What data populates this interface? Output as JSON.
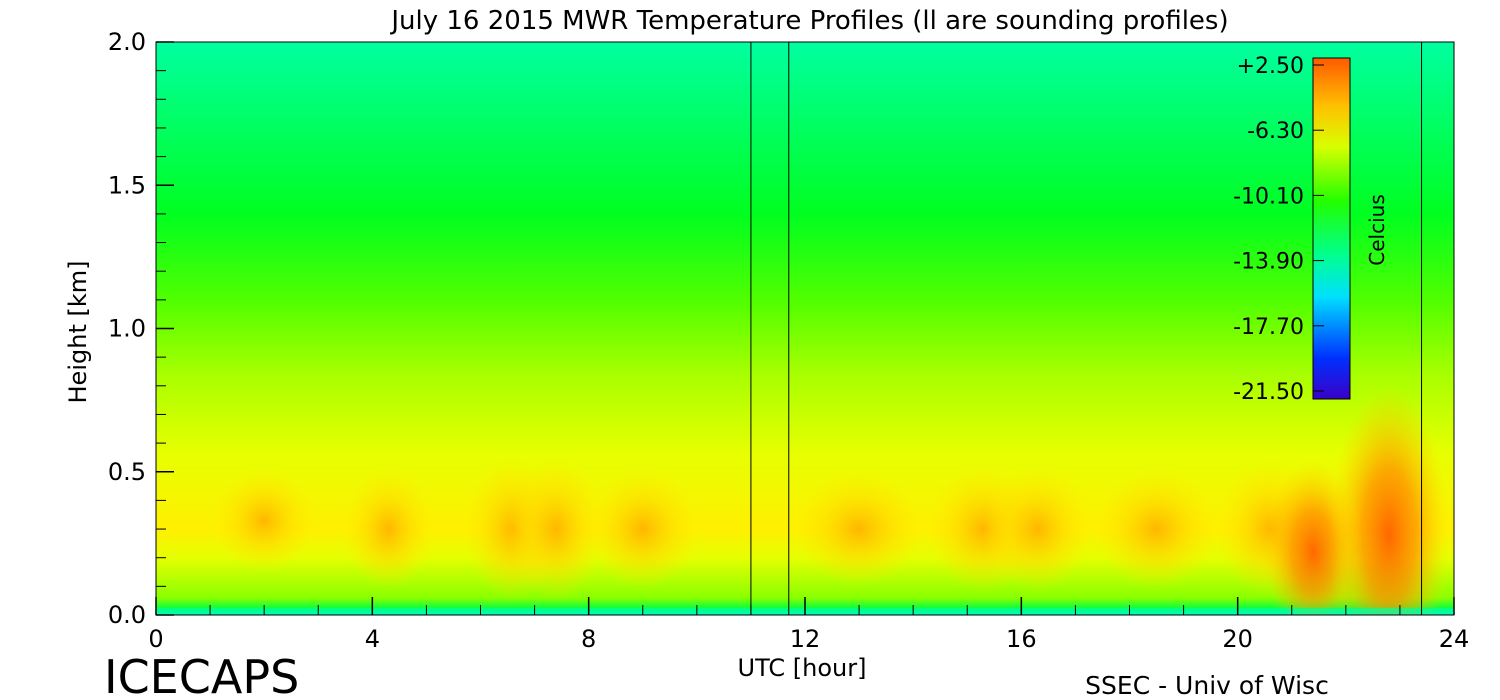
{
  "chart_data": {
    "type": "heatmap",
    "title": "July 16 2015 MWR Temperature Profiles (ll are sounding profiles)",
    "xlabel": "UTC [hour]",
    "ylabel": "Height [km]",
    "xlim": [
      0,
      24
    ],
    "ylim": [
      0,
      2.0
    ],
    "x_ticks": [
      "0",
      "4",
      "8",
      "12",
      "16",
      "20",
      "24"
    ],
    "y_ticks": [
      "0.0",
      "0.5",
      "1.0",
      "1.5",
      "2.0"
    ],
    "colorbar": {
      "label": "Celcius",
      "ticks": [
        "+2.50",
        "-6.30",
        "-10.10",
        "-13.90",
        "-17.70",
        "-21.50"
      ],
      "range": [
        -21.5,
        2.5
      ]
    },
    "sounding_times_hours": [
      11.0,
      11.7,
      23.4
    ],
    "field_summary": {
      "surface_temperature_C": -12.0,
      "upper_level_temperature_C_at_2km": -11.5,
      "warm_layer_height_km": 0.3,
      "warm_layer_peak_C": -2.0
    },
    "footer_left": "ICECAPS",
    "footer_right": "SSEC - Univ of Wisc"
  }
}
